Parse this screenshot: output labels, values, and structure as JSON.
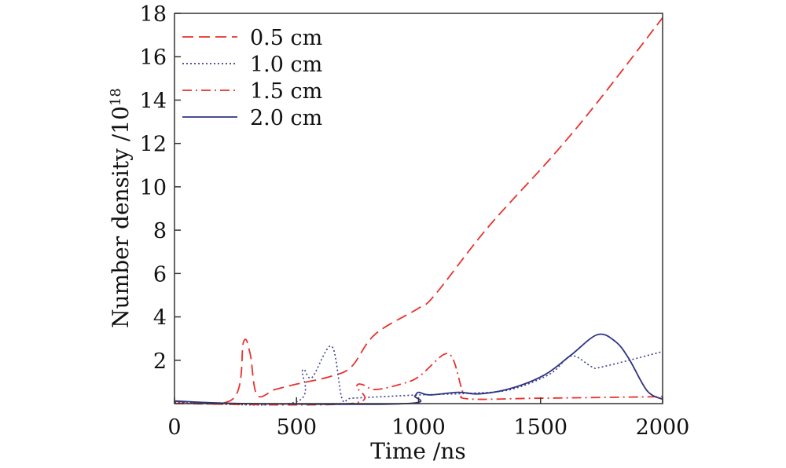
{
  "chart_data": {
    "type": "line",
    "title": "",
    "xlabel": "Time /ns",
    "ylabel": "Number density /10",
    "ylabel_exponent": "18",
    "xlim": [
      0,
      2000
    ],
    "ylim": [
      0,
      18
    ],
    "xticks": [
      "0",
      "500",
      "1000",
      "1500",
      "2000"
    ],
    "xtick_values": [
      0,
      500,
      1000,
      1500,
      2000
    ],
    "yticks": [
      "2",
      "4",
      "6",
      "8",
      "10",
      "12",
      "14",
      "16",
      "18"
    ],
    "ytick_values": [
      2,
      4,
      6,
      8,
      10,
      12,
      14,
      16,
      18
    ],
    "grid": false,
    "legend_position": "top-left",
    "series": [
      {
        "name": "0.5 cm",
        "color": "#e8322d",
        "dash": "dashed",
        "x": [
          0,
          240,
          283,
          310,
          338,
          412,
          500,
          638,
          725,
          822,
          1000,
          1066,
          1282,
          1540,
          1733,
          2000
        ],
        "y": [
          0.1,
          0.22,
          2.85,
          2.3,
          0.4,
          0.65,
          0.9,
          1.25,
          1.7,
          3.2,
          4.4,
          5.0,
          8.1,
          11.3,
          13.9,
          17.8
        ]
      },
      {
        "name": "1.0 cm",
        "color": "#3a3f8f",
        "dash": "dotted",
        "x": [
          0,
          490,
          525,
          563,
          644,
          686,
          724,
          850,
          1000,
          1217,
          1378,
          1539,
          1626,
          1710,
          1755,
          2000
        ],
        "y": [
          0.05,
          0.05,
          1.55,
          1.2,
          2.65,
          0.25,
          0.25,
          0.32,
          0.4,
          0.48,
          0.65,
          1.37,
          2.2,
          1.7,
          1.7,
          2.4
        ]
      },
      {
        "name": "1.5 cm",
        "color": "#e8322d",
        "dash": "dashdot",
        "x": [
          0,
          720,
          745,
          770,
          822,
          928,
          1002,
          1104,
          1143,
          1179,
          1201,
          1500,
          2000
        ],
        "y": [
          0.0,
          0.0,
          0.8,
          0.88,
          0.65,
          0.9,
          1.25,
          2.27,
          2.0,
          0.6,
          0.22,
          0.25,
          0.32
        ]
      },
      {
        "name": "2.0 cm",
        "color": "#2e3480",
        "dash": "solid",
        "x": [
          0,
          300,
          950,
          985,
          1000,
          1046,
          1163,
          1250,
          1378,
          1517,
          1626,
          1733,
          1807,
          1862,
          1936,
          2000
        ],
        "y": [
          0.12,
          0.0,
          0.0,
          0.35,
          0.52,
          0.4,
          0.52,
          0.45,
          0.7,
          1.33,
          2.25,
          3.18,
          2.86,
          2.07,
          0.6,
          0.2
        ]
      }
    ]
  }
}
